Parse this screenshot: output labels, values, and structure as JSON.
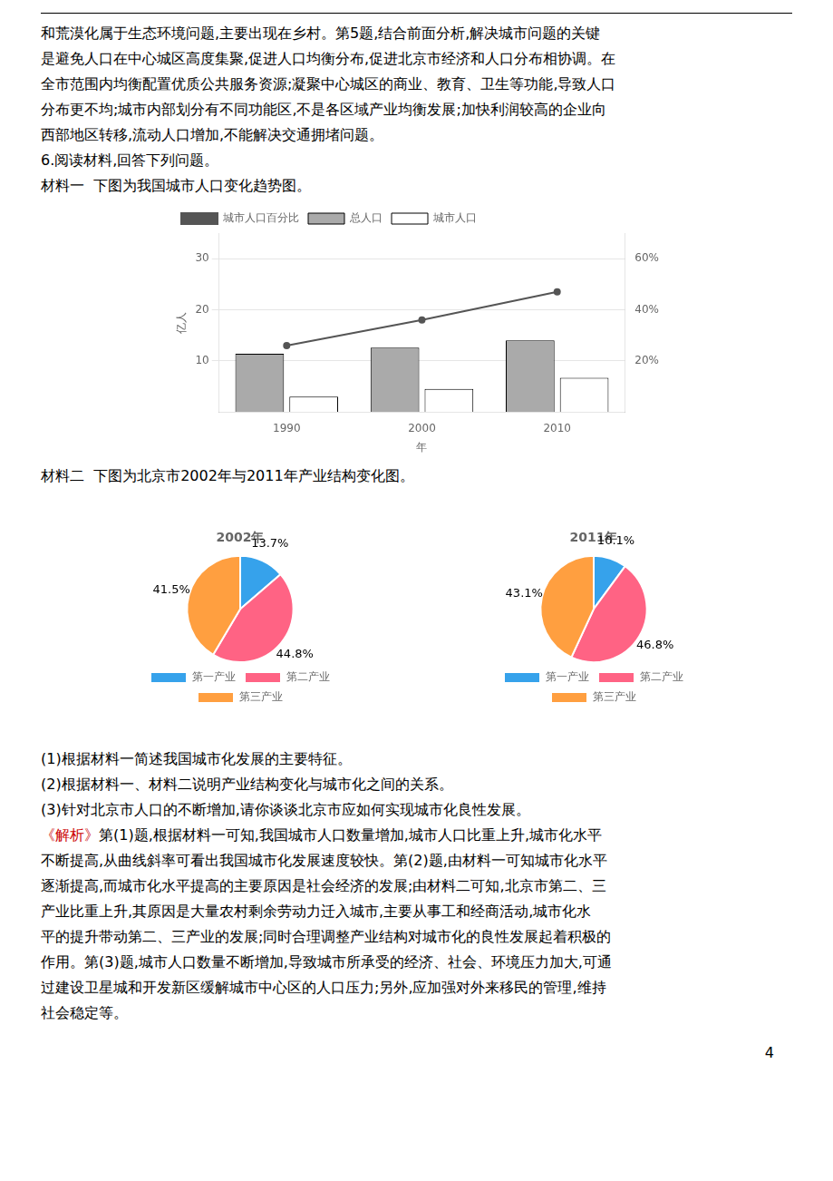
{
  "page_text": {
    "before_chart_1": [
      "和荒漠化属于生态环境问题,主要出现在乡村。第5题,结合前面分析,解决城市问题的关键",
      "是避免人口在中心城区高度集聚,促进人口均衡分布,促进北京市经济和人口分布相协调。在",
      "全市范围内均衡配置优质公共服务资源;凝聚中心城区的商业、教育、卫生等功能,导致人口",
      "分布更不均;城市内部划分有不同功能区,不是各区域产业均衡发展;加快利润较高的企业向",
      "西部地区转移,流动人口增加,不能解决交通拥堵问题。",
      "6.阅读材料,回答下列问题。",
      "材料一  下图为我国城市人口变化趋势图。"
    ],
    "before_chart_2": [
      "材料二  下图为北京市2002年与2011年产业结构变化图。"
    ],
    "after_charts": [
      "(1)根据材料一简述我国城市化发展的主要特征。",
      "(2)根据材料一、材料二说明产业结构变化与城市化之间的关系。",
      "(3)针对北京市人口的不断增加,请你谈谈北京市应如何实现城市化良性发展。"
    ],
    "analysis": {
      "label": "《解析》",
      "label_color": "#cc0000",
      "lines": [
        "第(1)题,根据材料一可知,我国城市人口数量增加,城市人口比重上升,城市化水平",
        "不断提高,从曲线斜率可看出我国城市化发展速度较快。第(2)题,由材料一可知城市化水平",
        "逐渐提高,而城市化水平提高的主要原因是社会经济的发展;由材料二可知,北京市第二、三",
        "产业比重上升,其原因是大量农村剩余劳动力迁入城市,主要从事工和经商活动,城市化水",
        "平的提升带动第二、三产业的发展;同时合理调整产业结构对城市化的良性发展起着积极的",
        "作用。第(3)题,城市人口数量不断增加,导致城市所承受的经济、社会、环境压力加大,可通",
        "过建设卫星城和开发新区缓解城市中心区的人口压力;另外,应加强对外来移民的管理,维持",
        "社会稳定等。"
      ]
    },
    "page_number": "4"
  },
  "chart_data": [
    {
      "type": "bar",
      "categories": [
        "1990",
        "2000",
        "2010"
      ],
      "series": [
        {
          "name": "总人口",
          "color": "#aaaaaa",
          "values": [
            11.4,
            12.6,
            14.0
          ]
        },
        {
          "name": "城市人口",
          "color": "#ffffff",
          "values": [
            3.0,
            4.5,
            6.7
          ]
        },
        {
          "name": "城市人口百分比",
          "color": "#555555",
          "type": "line",
          "axis": "y2",
          "values": [
            26,
            36,
            47
          ]
        }
      ],
      "xlabel": "年",
      "ylabel": "亿人",
      "ylim": [
        0,
        35
      ],
      "yticks": [
        10,
        20,
        30
      ],
      "y2lim": [
        0,
        70
      ],
      "y2ticks": [
        {
          "value": 20,
          "label": "20%"
        },
        {
          "value": 40,
          "label": "40%"
        },
        {
          "value": 60,
          "label": "60%"
        }
      ],
      "grid": true,
      "legend": "upper left"
    },
    {
      "type": "pie",
      "title": "2002年",
      "categories": [
        "第一产业",
        "第二产业",
        "第三产业"
      ],
      "values": [
        13.7,
        44.8,
        41.5
      ],
      "value_labels": [
        "13.7%",
        "44.8%",
        "41.5%"
      ],
      "data_labels": true,
      "legend": "bottom"
    },
    {
      "type": "pie",
      "title": "2011年",
      "categories": [
        "第一产业",
        "第二产业",
        "第三产业"
      ],
      "values": [
        10.1,
        46.8,
        43.1
      ],
      "value_labels": [
        "10.1%",
        "46.8%",
        "43.1%"
      ],
      "data_labels": true,
      "legend": "bottom"
    }
  ]
}
